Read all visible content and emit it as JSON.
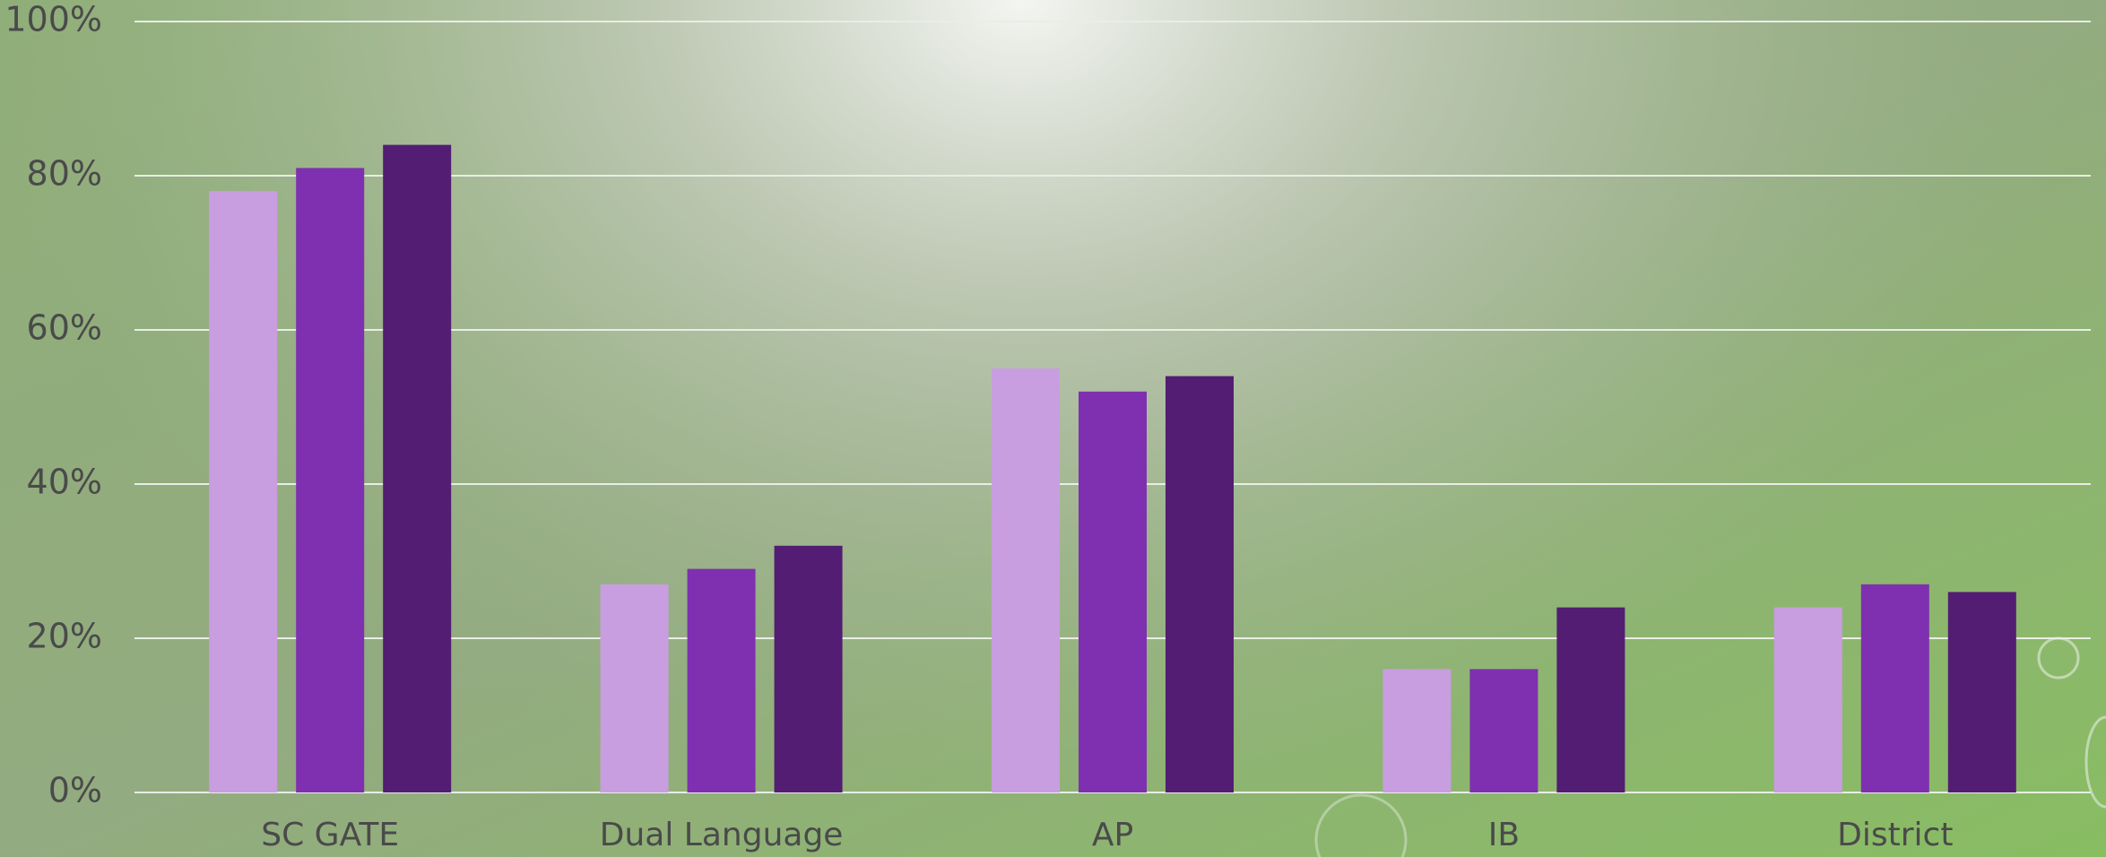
{
  "chart_data": {
    "type": "bar",
    "categories": [
      "SC GATE",
      "Dual Language",
      "AP",
      "IB",
      "District"
    ],
    "series": [
      {
        "color": "#c89ee0",
        "values": [
          78,
          27,
          55,
          16,
          24
        ]
      },
      {
        "color": "#7e30b0",
        "values": [
          81,
          29,
          52,
          16,
          27
        ]
      },
      {
        "color": "#521d72",
        "values": [
          84,
          32,
          54,
          24,
          26
        ]
      }
    ],
    "ylim": [
      0,
      100
    ],
    "yticks": [
      {
        "value": 0,
        "label": "0%"
      },
      {
        "value": 20,
        "label": "20%"
      },
      {
        "value": 40,
        "label": "40%"
      },
      {
        "value": 60,
        "label": "60%"
      },
      {
        "value": 80,
        "label": "80%"
      },
      {
        "value": 100,
        "label": "100%"
      }
    ],
    "grid": true
  }
}
